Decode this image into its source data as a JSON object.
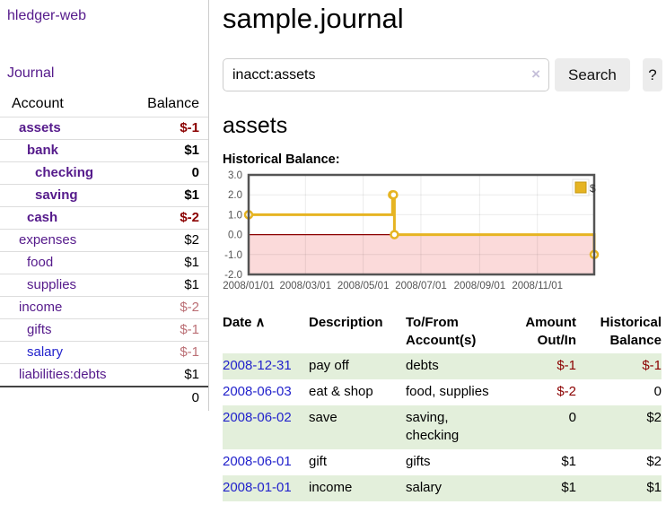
{
  "colors": {
    "link_purple": "#551a8b",
    "link_blue": "#2222cc",
    "negative_strong": "#8b0000",
    "negative_weak": "#bb6f75",
    "row_stripe_green": "#e3efdb",
    "chart_line_gold": "#e6b422",
    "chart_negative_region": "#fbdada",
    "chart_zero_line": "#8b0000",
    "chart_border": "#545454"
  },
  "sidebar": {
    "app_title": "hledger-web",
    "journal_link": "Journal",
    "accounts_table": {
      "headers": {
        "account": "Account",
        "balance": "Balance"
      },
      "rows": [
        {
          "name": "assets",
          "balance": "$-1",
          "level": 1,
          "bold": true,
          "neg": true
        },
        {
          "name": "bank",
          "balance": "$1",
          "level": 2,
          "bold": true,
          "neg": false
        },
        {
          "name": "checking",
          "balance": "0",
          "level": 3,
          "bold": true,
          "neg": false
        },
        {
          "name": "saving",
          "balance": "$1",
          "level": 3,
          "bold": true,
          "neg": false
        },
        {
          "name": "cash",
          "balance": "$-2",
          "level": 2,
          "bold": true,
          "neg": true
        },
        {
          "name": "expenses",
          "balance": "$2",
          "level": 1,
          "bold": false,
          "neg": false
        },
        {
          "name": "food",
          "balance": "$1",
          "level": 2,
          "bold": false,
          "neg": false
        },
        {
          "name": "supplies",
          "balance": "$1",
          "level": 2,
          "bold": false,
          "neg": false
        },
        {
          "name": "income",
          "balance": "$-2",
          "level": 1,
          "bold": false,
          "neg": true
        },
        {
          "name": "gifts",
          "balance": "$-1",
          "level": 2,
          "bold": false,
          "neg": true
        },
        {
          "name": "salary",
          "balance": "$-1",
          "level": 2,
          "bold": false,
          "neg": true,
          "unvisited": true
        },
        {
          "name": "liabilities:debts",
          "balance": "$1",
          "level": 1,
          "bold": false,
          "neg": false
        }
      ],
      "total": "0"
    }
  },
  "main": {
    "title": "sample.journal",
    "search": {
      "value": "inacct:assets",
      "clear_icon": "×",
      "search_button": "Search",
      "help_button": "?"
    },
    "account_heading": "assets",
    "chart_label": "Historical Balance:",
    "register_table": {
      "headers": {
        "date": "Date",
        "description": "Description",
        "accounts": "To/From Account(s)",
        "amount": "Amount Out/In",
        "balance": "Historical Balance"
      },
      "sort_asc_icon": "∧",
      "rows": [
        {
          "date": "2008-12-31",
          "description": "pay off",
          "accounts": "debts",
          "amount": "$-1",
          "amount_neg": true,
          "balance": "$-1",
          "balance_neg": true,
          "shaded": true
        },
        {
          "date": "2008-06-03",
          "description": "eat & shop",
          "accounts": "food, supplies",
          "amount": "$-2",
          "amount_neg": true,
          "balance": "0",
          "balance_neg": false,
          "shaded": false
        },
        {
          "date": "2008-06-02",
          "description": "save",
          "accounts": "saving, checking",
          "amount": "0",
          "amount_neg": false,
          "balance": "$2",
          "balance_neg": false,
          "shaded": true
        },
        {
          "date": "2008-06-01",
          "description": "gift",
          "accounts": "gifts",
          "amount": "$1",
          "amount_neg": false,
          "balance": "$2",
          "balance_neg": false,
          "shaded": false
        },
        {
          "date": "2008-01-01",
          "description": "income",
          "accounts": "salary",
          "amount": "$1",
          "amount_neg": false,
          "balance": "$1",
          "balance_neg": false,
          "shaded": true
        }
      ]
    }
  },
  "chart_data": {
    "type": "line",
    "step": true,
    "title": "Historical Balance:",
    "series": [
      {
        "name": "$",
        "x": [
          "2008-01-01",
          "2008-06-01",
          "2008-06-02",
          "2008-06-03",
          "2008-12-31"
        ],
        "values": [
          1,
          2,
          2,
          0,
          -1
        ]
      }
    ],
    "xlim": [
      "2008-01-01",
      "2008-12-31"
    ],
    "ylim": [
      -2,
      3
    ],
    "y_ticks": [
      "3.0",
      "2.0",
      "1.0",
      "0.0",
      "-1.0",
      "-2.0"
    ],
    "x_ticks": [
      {
        "date": "2008-01-01",
        "label": "2008/01/01"
      },
      {
        "date": "2008-03-01",
        "label": "2008/03/01"
      },
      {
        "date": "2008-05-01",
        "label": "2008/05/01"
      },
      {
        "date": "2008-07-01",
        "label": "2008/07/01"
      },
      {
        "date": "2008-09-01",
        "label": "2008/09/01"
      },
      {
        "date": "2008-11-01",
        "label": "2008/11/01"
      }
    ],
    "legend_position": "top-right",
    "grid": true,
    "line_color": "#e6b422",
    "negative_region_color": "#fbdada",
    "zero_line_color": "#8b0000"
  }
}
